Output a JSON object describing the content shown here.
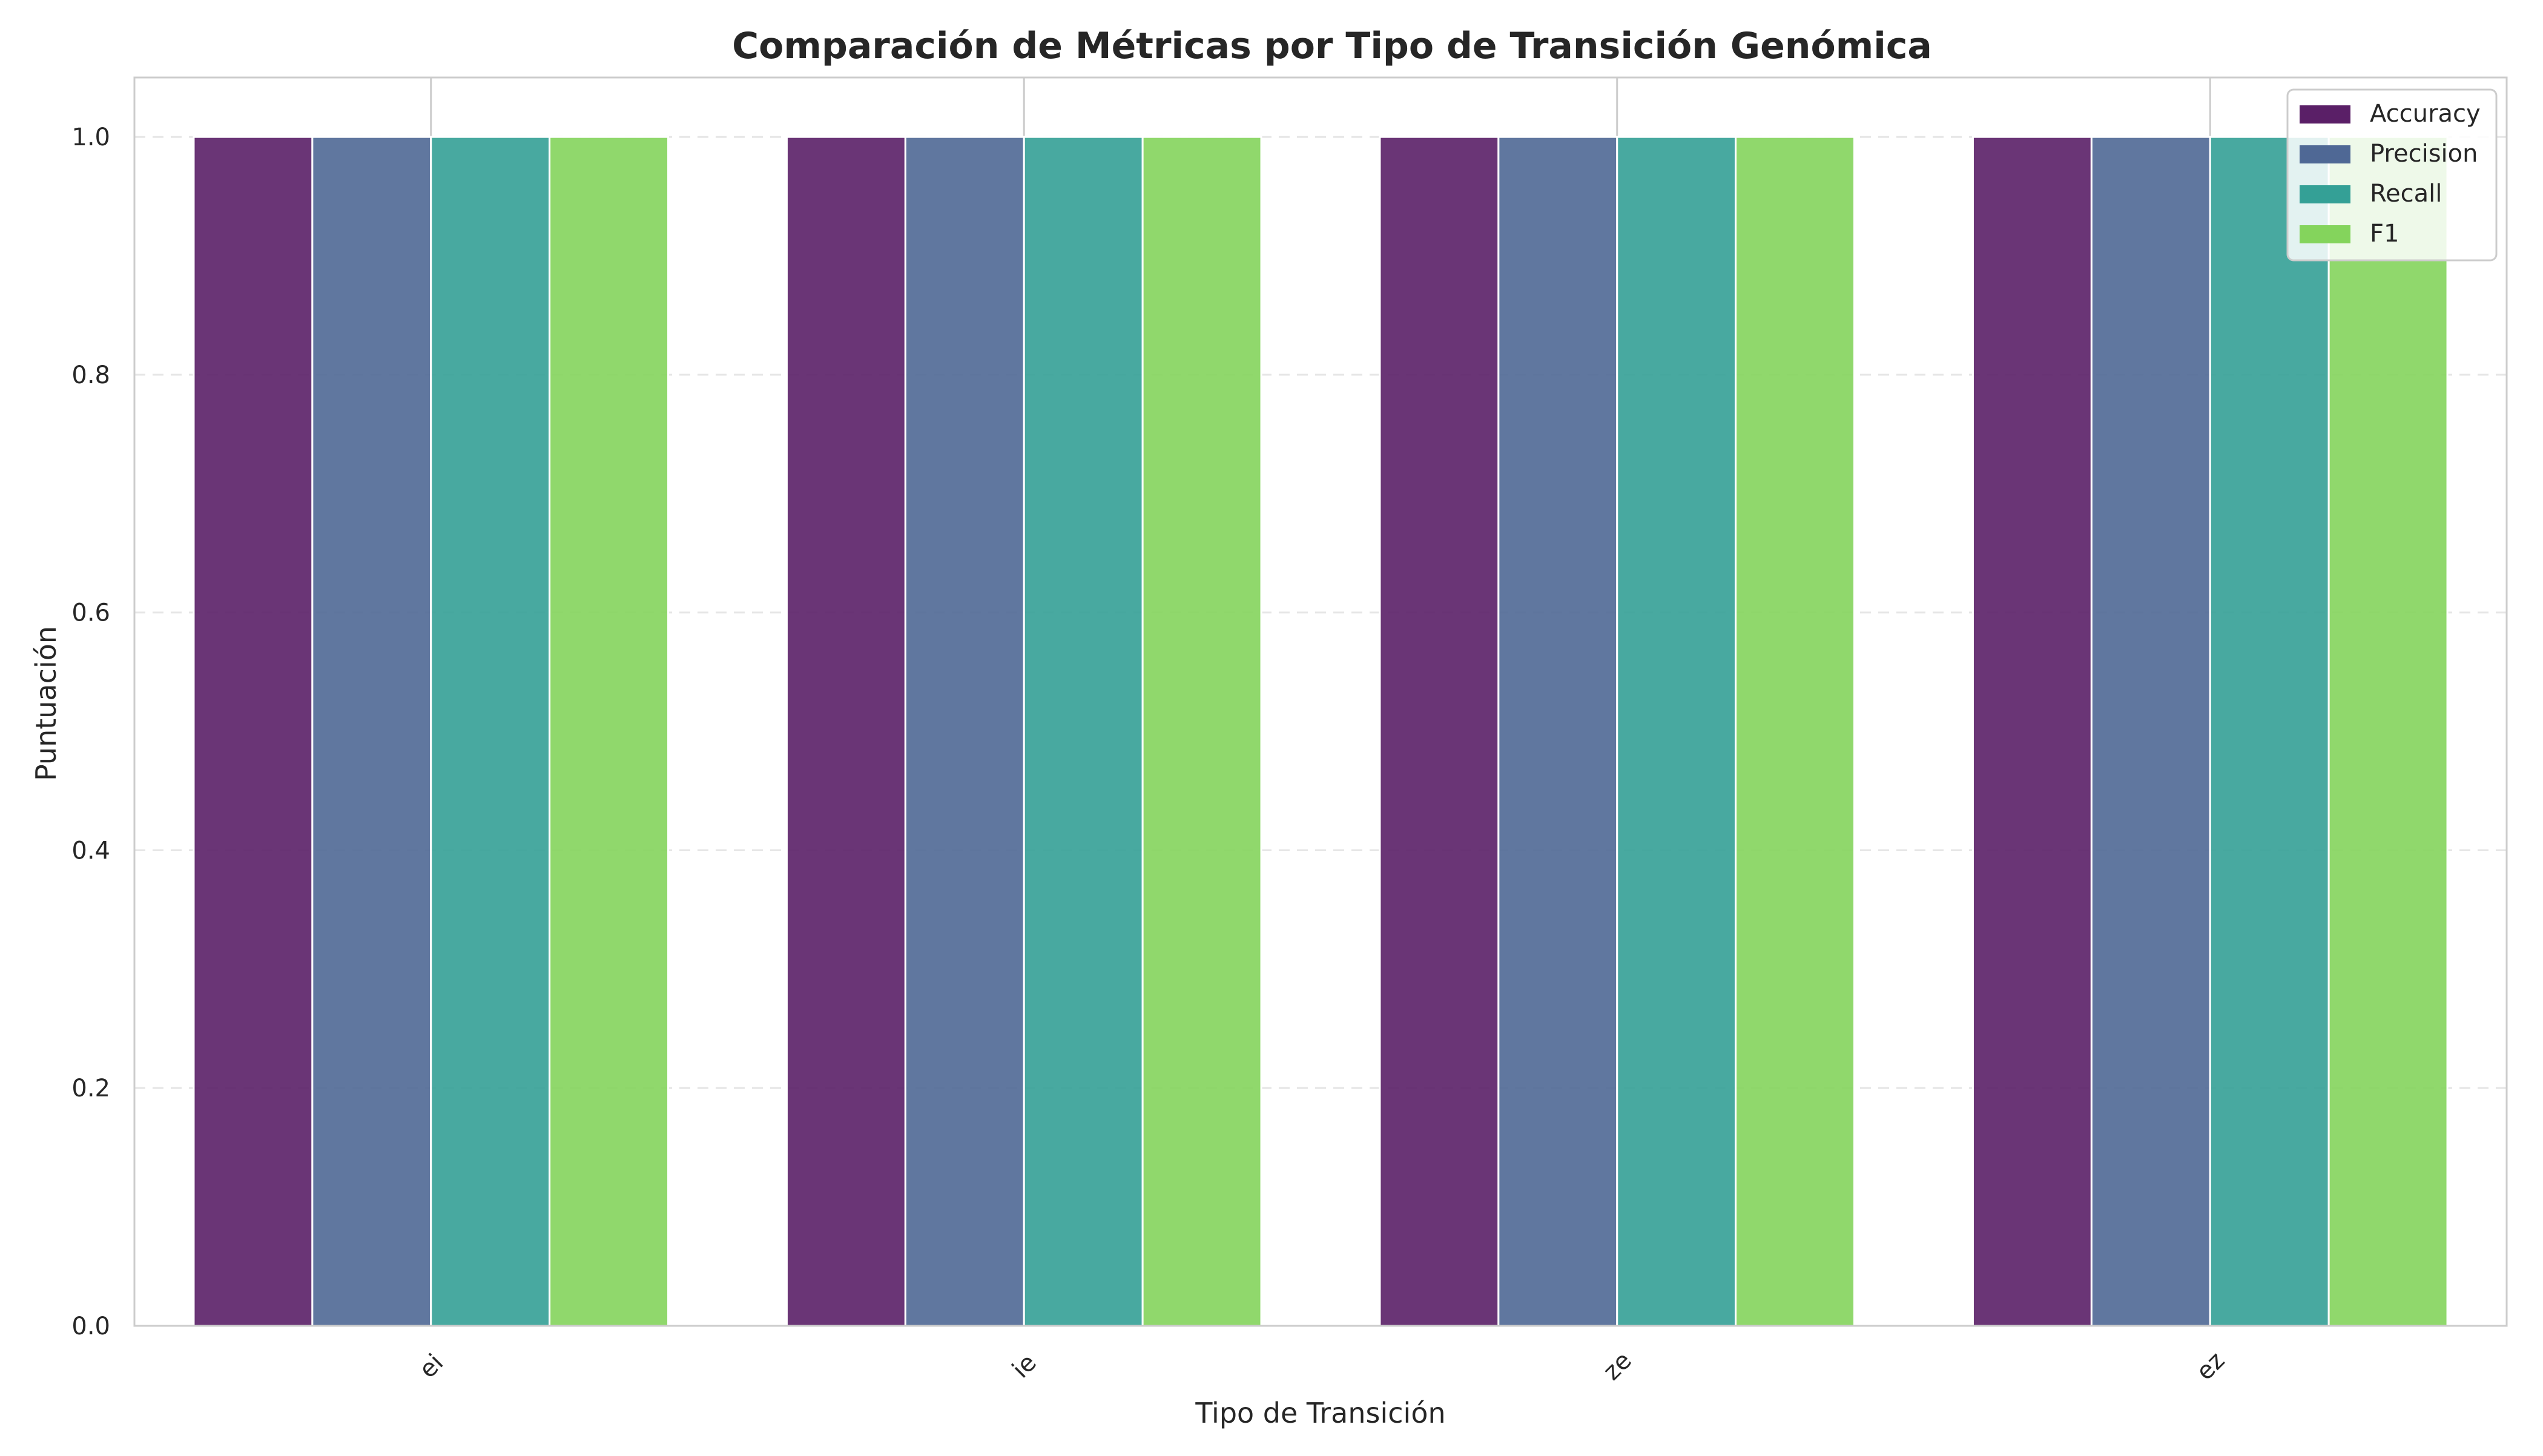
{
  "chart_data": {
    "type": "bar",
    "title": "Comparación de Métricas por Tipo de Transición Genómica",
    "xlabel": "Tipo de Transición",
    "ylabel": "Puntuación",
    "categories": [
      "ei",
      "ie",
      "ze",
      "ez"
    ],
    "series": [
      {
        "name": "Accuracy",
        "values": [
          1.0,
          1.0,
          1.0,
          1.0
        ],
        "color": "#5a1f67"
      },
      {
        "name": "Precision",
        "values": [
          1.0,
          1.0,
          1.0,
          1.0
        ],
        "color": "#4f6895"
      },
      {
        "name": "Recall",
        "values": [
          1.0,
          1.0,
          1.0,
          1.0
        ],
        "color": "#34a096"
      },
      {
        "name": "F1",
        "values": [
          1.0,
          1.0,
          1.0,
          1.0
        ],
        "color": "#84d45c"
      }
    ],
    "ylim": [
      0,
      1.05
    ],
    "yticks": [
      "0.0",
      "0.2",
      "0.4",
      "0.6",
      "0.8",
      "1.0"
    ],
    "xtick_rotation": "45",
    "grid": "y dashed",
    "legend_position": "top-right"
  }
}
